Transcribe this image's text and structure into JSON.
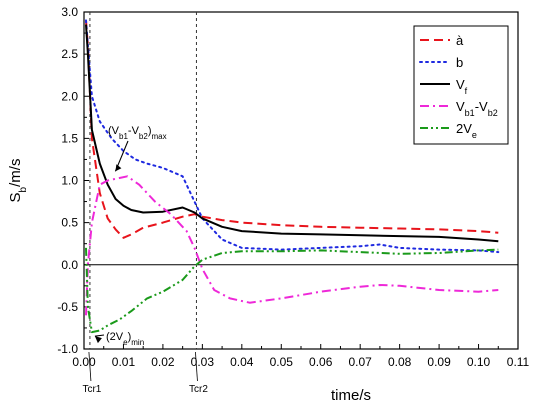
{
  "chart_data": {
    "type": "line",
    "xlabel": "time/s",
    "ylabel": "S_b/m/s",
    "xlim": [
      0.0,
      0.11
    ],
    "ylim": [
      -1.0,
      3.0
    ],
    "x_ticks": [
      "0.00",
      "0.01",
      "0.02",
      "0.03",
      "0.04",
      "0.05",
      "0.06",
      "0.07",
      "0.08",
      "0.09",
      "0.10",
      "0.11"
    ],
    "y_ticks": [
      "-1.0",
      "-0.5",
      "0.0",
      "0.5",
      "1.0",
      "1.5",
      "2.0",
      "2.5",
      "3.0"
    ],
    "zero_line": true,
    "grid": false,
    "legend_position": "top-right",
    "series": [
      {
        "name": "a",
        "legend_label": "à",
        "color": "#e8141c",
        "style": "dashed",
        "points": [
          [
            0.0005,
            2.9
          ],
          [
            0.001,
            2.6
          ],
          [
            0.002,
            1.5
          ],
          [
            0.004,
            0.85
          ],
          [
            0.006,
            0.55
          ],
          [
            0.008,
            0.42
          ],
          [
            0.01,
            0.32
          ],
          [
            0.012,
            0.36
          ],
          [
            0.015,
            0.44
          ],
          [
            0.02,
            0.5
          ],
          [
            0.025,
            0.57
          ],
          [
            0.028,
            0.6
          ],
          [
            0.03,
            0.57
          ],
          [
            0.035,
            0.53
          ],
          [
            0.04,
            0.5
          ],
          [
            0.05,
            0.47
          ],
          [
            0.06,
            0.45
          ],
          [
            0.07,
            0.44
          ],
          [
            0.08,
            0.43
          ],
          [
            0.09,
            0.42
          ],
          [
            0.1,
            0.4
          ],
          [
            0.105,
            0.38
          ]
        ]
      },
      {
        "name": "b",
        "legend_label": "b",
        "color": "#1f2ae0",
        "style": "dotted",
        "points": [
          [
            0.0005,
            2.9
          ],
          [
            0.001,
            2.6
          ],
          [
            0.002,
            2.0
          ],
          [
            0.004,
            1.7
          ],
          [
            0.007,
            1.5
          ],
          [
            0.01,
            1.35
          ],
          [
            0.013,
            1.25
          ],
          [
            0.016,
            1.2
          ],
          [
            0.02,
            1.15
          ],
          [
            0.025,
            1.05
          ],
          [
            0.027,
            0.85
          ],
          [
            0.03,
            0.55
          ],
          [
            0.035,
            0.3
          ],
          [
            0.04,
            0.2
          ],
          [
            0.05,
            0.18
          ],
          [
            0.06,
            0.2
          ],
          [
            0.07,
            0.22
          ],
          [
            0.075,
            0.24
          ],
          [
            0.08,
            0.2
          ],
          [
            0.09,
            0.18
          ],
          [
            0.1,
            0.17
          ],
          [
            0.105,
            0.15
          ]
        ]
      },
      {
        "name": "Vf",
        "legend_label": "V_f",
        "color": "#000000",
        "style": "solid",
        "points": [
          [
            0.0005,
            2.85
          ],
          [
            0.001,
            2.5
          ],
          [
            0.002,
            1.6
          ],
          [
            0.004,
            1.2
          ],
          [
            0.006,
            0.95
          ],
          [
            0.008,
            0.78
          ],
          [
            0.01,
            0.7
          ],
          [
            0.012,
            0.65
          ],
          [
            0.015,
            0.62
          ],
          [
            0.02,
            0.63
          ],
          [
            0.025,
            0.68
          ],
          [
            0.028,
            0.62
          ],
          [
            0.03,
            0.55
          ],
          [
            0.035,
            0.45
          ],
          [
            0.04,
            0.4
          ],
          [
            0.05,
            0.37
          ],
          [
            0.06,
            0.36
          ],
          [
            0.07,
            0.35
          ],
          [
            0.08,
            0.34
          ],
          [
            0.09,
            0.33
          ],
          [
            0.1,
            0.3
          ],
          [
            0.105,
            0.28
          ]
        ]
      },
      {
        "name": "Vb1-Vb2",
        "legend_label": "V_b1-V_b2",
        "color": "#ee28d8",
        "style": "dashdot",
        "points": [
          [
            0.0005,
            -0.6
          ],
          [
            0.001,
            0.0
          ],
          [
            0.002,
            0.5
          ],
          [
            0.004,
            0.95
          ],
          [
            0.006,
            1.0
          ],
          [
            0.008,
            1.02
          ],
          [
            0.011,
            1.05
          ],
          [
            0.014,
            0.95
          ],
          [
            0.018,
            0.75
          ],
          [
            0.022,
            0.6
          ],
          [
            0.026,
            0.4
          ],
          [
            0.028,
            0.2
          ],
          [
            0.03,
            -0.05
          ],
          [
            0.033,
            -0.3
          ],
          [
            0.037,
            -0.4
          ],
          [
            0.042,
            -0.45
          ],
          [
            0.05,
            -0.4
          ],
          [
            0.06,
            -0.32
          ],
          [
            0.07,
            -0.26
          ],
          [
            0.075,
            -0.24
          ],
          [
            0.08,
            -0.25
          ],
          [
            0.09,
            -0.3
          ],
          [
            0.1,
            -0.32
          ],
          [
            0.105,
            -0.3
          ]
        ]
      },
      {
        "name": "2Ve",
        "legend_label": "2V_e",
        "color": "#1a9a1a",
        "style": "dashdotdot",
        "points": [
          [
            0.0005,
            0.2
          ],
          [
            0.001,
            -0.5
          ],
          [
            0.002,
            -0.8
          ],
          [
            0.004,
            -0.78
          ],
          [
            0.006,
            -0.72
          ],
          [
            0.009,
            -0.65
          ],
          [
            0.012,
            -0.55
          ],
          [
            0.016,
            -0.4
          ],
          [
            0.02,
            -0.32
          ],
          [
            0.025,
            -0.18
          ],
          [
            0.028,
            -0.02
          ],
          [
            0.03,
            0.06
          ],
          [
            0.035,
            0.14
          ],
          [
            0.04,
            0.16
          ],
          [
            0.05,
            0.16
          ],
          [
            0.06,
            0.17
          ],
          [
            0.07,
            0.15
          ],
          [
            0.08,
            0.13
          ],
          [
            0.09,
            0.14
          ],
          [
            0.1,
            0.17
          ],
          [
            0.105,
            0.18
          ]
        ]
      }
    ],
    "vlines": [
      {
        "x": 0.0015,
        "label": "Tcr1"
      },
      {
        "x": 0.0285,
        "label": "Tcr2"
      }
    ],
    "annotations": [
      {
        "text": "(V_b1-V_b2)_max",
        "at": [
          0.011,
          1.05
        ]
      },
      {
        "text": "(2V_e)_min",
        "at": [
          0.002,
          -0.8
        ]
      }
    ]
  }
}
